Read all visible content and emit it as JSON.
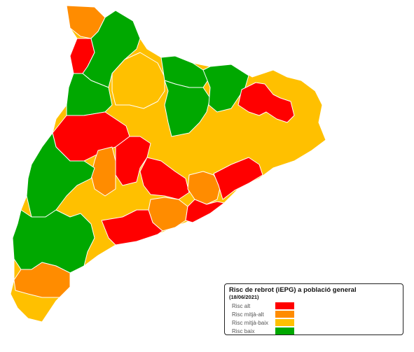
{
  "colors": {
    "alt": "#ff0000",
    "mitja_alt": "#ff8c00",
    "mitja_baix": "#ffc000",
    "baix": "#00a800"
  },
  "legend": {
    "title": "Risc de rebrot (iEPG) a població general",
    "date": "(18/06/2021)",
    "items": [
      {
        "label": "Risc alt",
        "color": "#ff0000"
      },
      {
        "label": "Risc mitjà-alt",
        "color": "#ff8c00"
      },
      {
        "label": "Risc mitjà-baix",
        "color": "#ffc000"
      },
      {
        "label": "Risc baix",
        "color": "#00a800"
      }
    ]
  }
}
